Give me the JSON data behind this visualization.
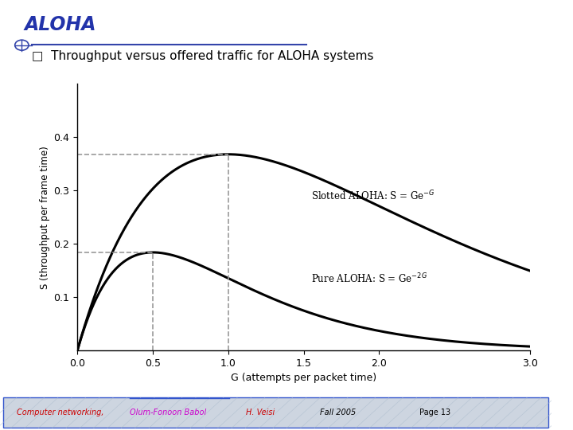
{
  "title": "ALOHA",
  "subtitle": "Throughput versus offered traffic for ALOHA systems",
  "xlabel": "G (attempts per packet time)",
  "ylabel": "S (throughput per frame time)",
  "xlim": [
    0,
    3.0
  ],
  "ylim": [
    0,
    0.5
  ],
  "xticks": [
    0,
    0.5,
    1.0,
    1.5,
    2.0,
    3.0
  ],
  "yticks": [
    0.1,
    0.2,
    0.3,
    0.4
  ],
  "dashed_color": "#999999",
  "curve_color": "#000000",
  "bg_color": "#ffffff",
  "plot_bg": "#ffffff",
  "footer_color_red": "#cc0000",
  "footer_color_purple": "#cc00cc",
  "footer_bg": "#cdd5e0",
  "title_color": "#2233aa",
  "line_color": "#3344aa",
  "right_bar_color": "#3355cc"
}
